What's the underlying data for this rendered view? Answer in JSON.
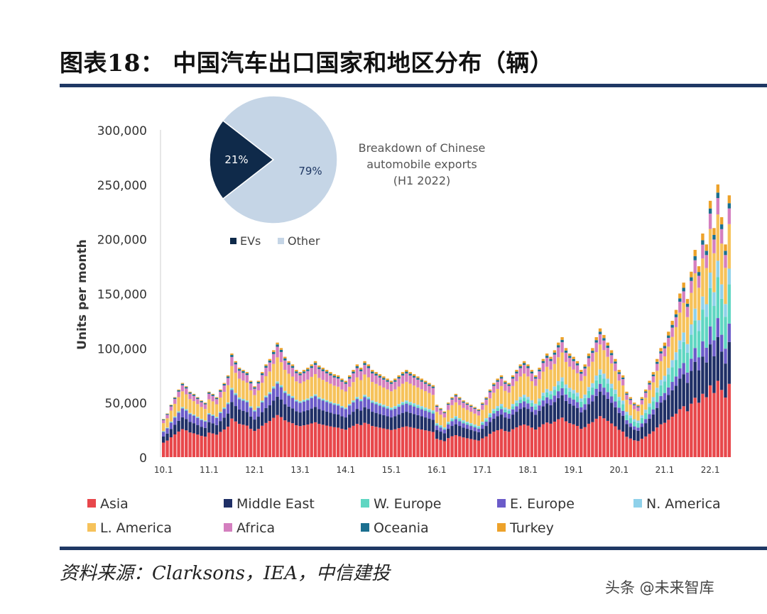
{
  "title": "图表18：   中国汽车出口国家和地区分布（辆）",
  "source": "资料来源：Clarksons，IEA，中信建投",
  "watermark": "头条 @未来智库",
  "colors": {
    "rule": "#1f3864",
    "Asia": "#e8474b",
    "Middle East": "#1f2f66",
    "W. Europe": "#5fd6c2",
    "E. Europe": "#6b5bc9",
    "N. America": "#8fd1ea",
    "L. America": "#f6c25a",
    "Africa": "#d47fbf",
    "Oceania": "#1b6f8f",
    "Turkey": "#eda22a",
    "EVs": "#0f2a4a",
    "Other": "#c5d5e6"
  },
  "chart_data": [
    {
      "type": "bar",
      "stacked": true,
      "ylabel": "Units per month",
      "ylim": [
        0,
        300000
      ],
      "yticks": [
        0,
        50000,
        100000,
        150000,
        200000,
        250000,
        300000
      ],
      "ytick_labels": [
        "0",
        "50,000",
        "100,000",
        "150,000",
        "200,000",
        "250,000",
        "300,000"
      ],
      "xtick_labels": [
        "10.1",
        "11.1",
        "12.1",
        "13.1",
        "14.1",
        "15.1",
        "16.1",
        "17.1",
        "18.1",
        "19.1",
        "20.1",
        "21.1",
        "22.1"
      ],
      "period": "2010-01 to 2022-06 (monthly)",
      "series_order": [
        "Asia",
        "Middle East",
        "E. Europe",
        "W. Europe",
        "N. America",
        "L. America",
        "Africa",
        "Oceania",
        "Turkey"
      ],
      "legend": [
        "Asia",
        "Middle East",
        "W. Europe",
        "E. Europe",
        "N. America",
        "L. America",
        "Africa",
        "Oceania",
        "Turkey"
      ],
      "legend_placement": "bottom",
      "totals_k": [
        [
          35,
          40,
          48,
          55,
          62,
          68,
          65,
          60,
          58,
          55,
          52,
          50
        ],
        [
          60,
          58,
          55,
          62,
          68,
          75,
          95,
          88,
          82,
          80,
          78,
          70
        ],
        [
          65,
          70,
          78,
          85,
          90,
          98,
          105,
          100,
          92,
          88,
          85,
          80
        ],
        [
          78,
          80,
          82,
          85,
          88,
          84,
          82,
          80,
          78,
          76,
          75,
          72
        ],
        [
          70,
          75,
          80,
          85,
          82,
          88,
          85,
          80,
          78,
          76,
          74,
          72
        ],
        [
          70,
          72,
          75,
          78,
          80,
          78,
          76,
          74,
          72,
          70,
          68,
          66
        ],
        [
          48,
          45,
          42,
          50,
          55,
          58,
          55,
          52,
          50,
          48,
          46,
          44
        ],
        [
          50,
          55,
          62,
          68,
          72,
          75,
          70,
          68,
          75,
          80,
          85,
          88
        ],
        [
          85,
          80,
          75,
          82,
          90,
          95,
          92,
          98,
          105,
          110,
          100,
          95
        ],
        [
          92,
          88,
          80,
          85,
          95,
          100,
          110,
          118,
          112,
          105,
          98,
          90
        ],
        [
          80,
          75,
          60,
          55,
          50,
          48,
          55,
          62,
          70,
          78,
          90,
          100
        ],
        [
          105,
          115,
          125,
          135,
          150,
          160,
          145,
          170,
          190,
          175,
          205,
          195
        ],
        [
          235,
          210,
          250,
          220,
          195,
          240
        ]
      ],
      "shares": {
        "Asia": [
          0.38,
          0.36,
          0.34,
          0.3,
          0.28
        ],
        "Middle East": [
          0.16,
          0.16,
          0.18,
          0.2,
          0.16
        ],
        "E. Europe": [
          0.12,
          0.11,
          0.06,
          0.06,
          0.07
        ],
        "W. Europe": [
          0.01,
          0.01,
          0.04,
          0.1,
          0.15
        ],
        "N. America": [
          0.01,
          0.01,
          0.03,
          0.05,
          0.06
        ],
        "L. America": [
          0.21,
          0.21,
          0.22,
          0.17,
          0.17
        ],
        "Africa": [
          0.08,
          0.1,
          0.09,
          0.07,
          0.06
        ],
        "Oceania": [
          0.02,
          0.02,
          0.02,
          0.02,
          0.02
        ],
        "Turkey": [
          0.01,
          0.02,
          0.02,
          0.03,
          0.03
        ]
      },
      "share_breakpoints_year": [
        2010,
        2014,
        2018,
        2021,
        2022
      ]
    },
    {
      "type": "pie",
      "title_lines": [
        "Breakdown of Chinese",
        "automobile exports",
        "(H1 2022)"
      ],
      "labels": [
        "EVs",
        "Other"
      ],
      "values": [
        21,
        79
      ],
      "value_labels": [
        "21%",
        "79%"
      ],
      "legend_placement": "bottom"
    }
  ]
}
